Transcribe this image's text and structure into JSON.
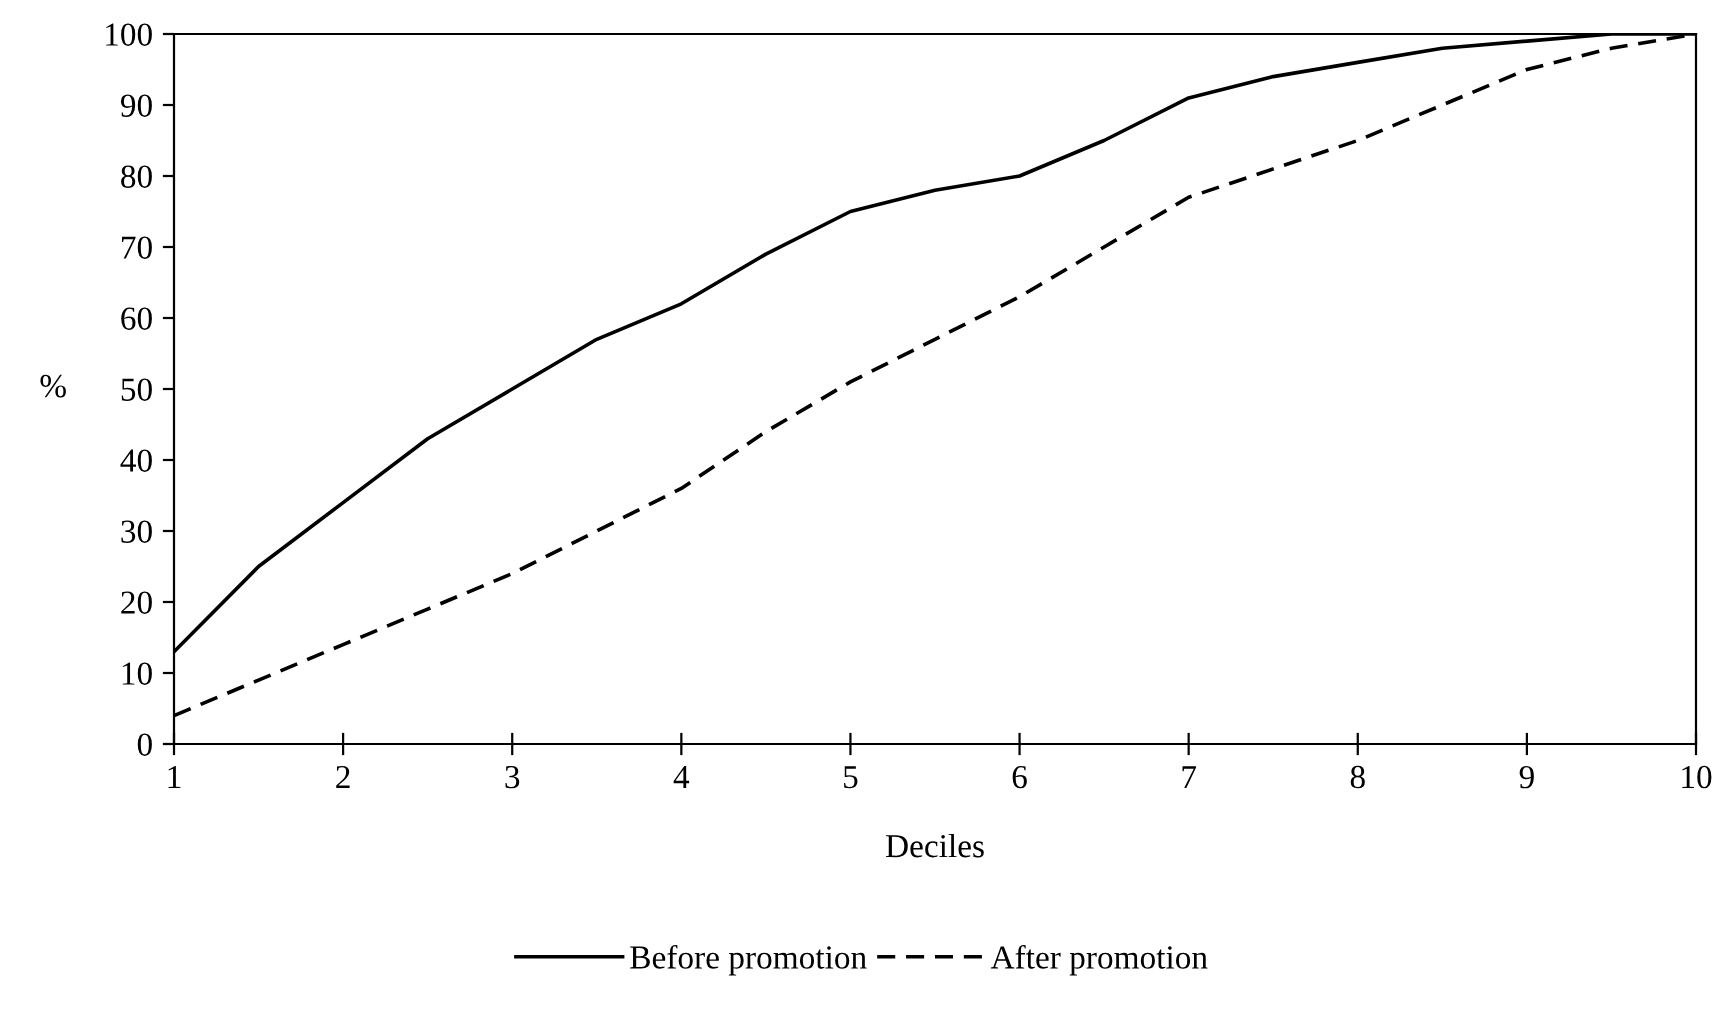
{
  "chart_data": {
    "type": "line",
    "xlabel": "Deciles",
    "ylabel": "%",
    "xlim": [
      1,
      10
    ],
    "xticks": [
      1,
      2,
      3,
      4,
      5,
      6,
      7,
      8,
      9,
      10
    ],
    "ylim": [
      0,
      100
    ],
    "yticks": [
      0,
      10,
      20,
      30,
      40,
      50,
      60,
      70,
      80,
      90,
      100
    ],
    "grid": false,
    "legend": "bottom",
    "series": [
      {
        "name": "Before promotion",
        "color": "#000000",
        "line_style": "solid",
        "x": [
          1,
          1.5,
          2,
          2.5,
          3,
          3.5,
          4,
          4.5,
          5,
          5.5,
          6,
          6.5,
          7,
          7.5,
          8,
          8.5,
          9,
          9.5,
          10
        ],
        "values": [
          13,
          25,
          34,
          43,
          50,
          57,
          62,
          69,
          75,
          78,
          80,
          85,
          91,
          94,
          96,
          98,
          99,
          100,
          100
        ]
      },
      {
        "name": "After promotion",
        "color": "#000000",
        "line_style": "dashed",
        "x": [
          1,
          1.5,
          2,
          2.5,
          3,
          3.5,
          4,
          4.5,
          5,
          5.5,
          6,
          6.5,
          7,
          7.5,
          8,
          8.5,
          9,
          9.5,
          10
        ],
        "values": [
          4,
          9,
          14,
          19,
          24,
          30,
          36,
          44,
          51,
          57,
          63,
          70,
          77,
          81,
          85,
          90,
          95,
          98,
          100
        ]
      }
    ]
  }
}
